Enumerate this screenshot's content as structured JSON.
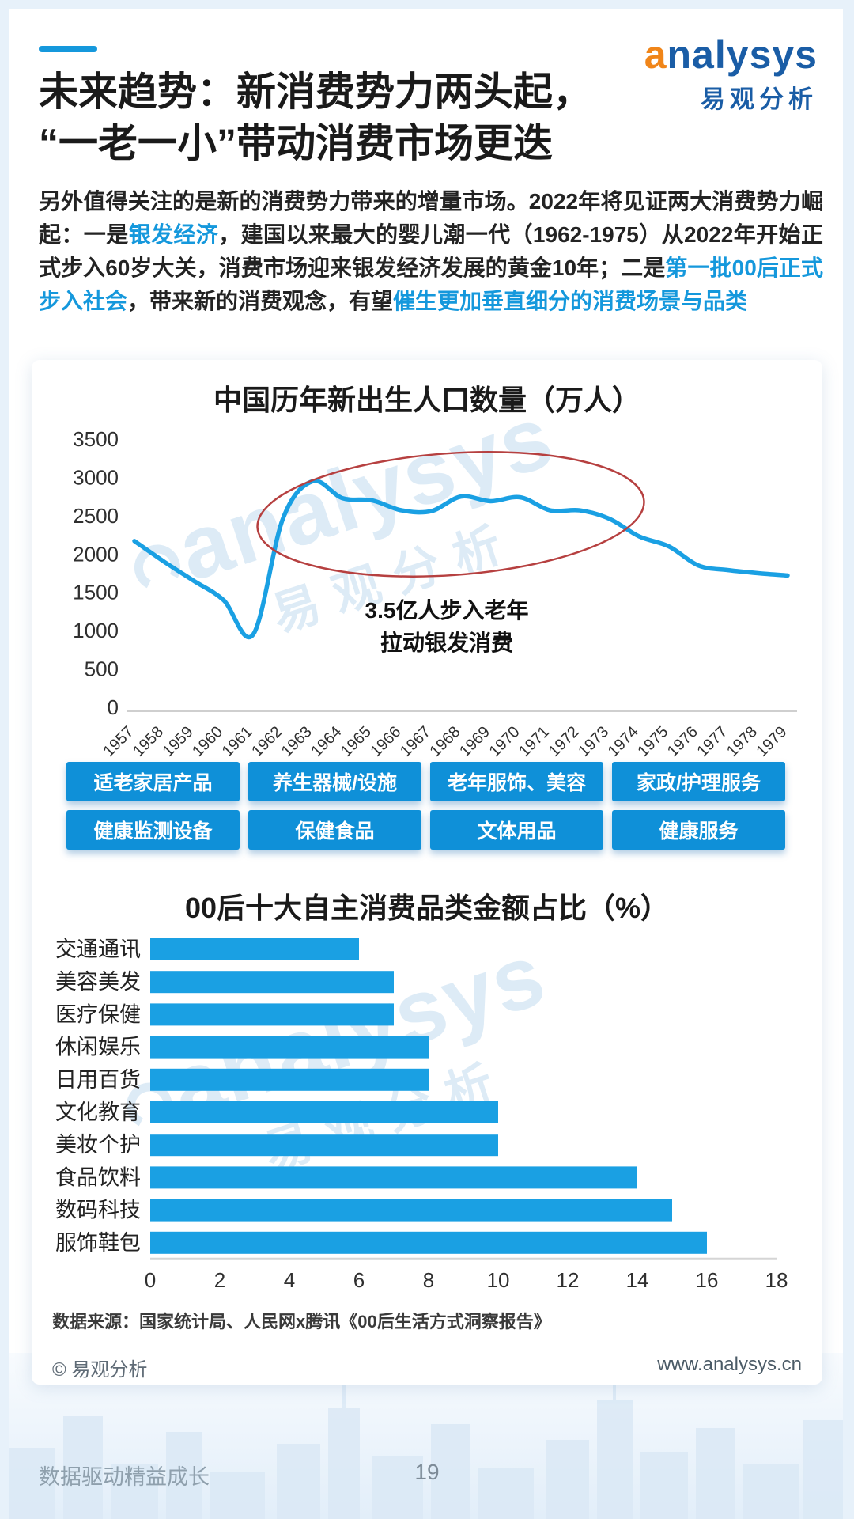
{
  "meta": {
    "accent": "#1598dc"
  },
  "header": {
    "logo_en": "analysys",
    "logo_cn": "易观分析"
  },
  "title": {
    "line1": "未来趋势：新消费势力两头起，",
    "line2": "“一老一小”带动消费市场更迭"
  },
  "paragraph": {
    "segments": [
      {
        "text": "另外值得关注的是新的消费势力带来的增量市场。2022年将见证两大消费势力崛起：一是",
        "highlight": false
      },
      {
        "text": "银发经济",
        "highlight": true
      },
      {
        "text": "，建国以来最大的婴儿潮一代（1962-1975）从2022年开始正式步入60岁大关，消费市场迎来银发经济发展的黄金10年；二是",
        "highlight": false
      },
      {
        "text": "第一批00后正式步入社会",
        "highlight": true
      },
      {
        "text": "，带来新的消费观念，有望",
        "highlight": false
      },
      {
        "text": "催生更加垂直细分的消费场景与品类",
        "highlight": true
      }
    ]
  },
  "chart_data": [
    {
      "type": "line",
      "title": "中国历年新出生人口数量（万人）",
      "x": [
        1957,
        1958,
        1959,
        1960,
        1961,
        1962,
        1963,
        1964,
        1965,
        1966,
        1967,
        1968,
        1969,
        1970,
        1971,
        1972,
        1973,
        1974,
        1975,
        1976,
        1977,
        1978,
        1979
      ],
      "values": [
        2170,
        1900,
        1650,
        1400,
        950,
        2460,
        2950,
        2730,
        2700,
        2570,
        2560,
        2750,
        2690,
        2740,
        2570,
        2570,
        2460,
        2230,
        2100,
        1850,
        1790,
        1750,
        1720
      ],
      "ylim": [
        0,
        3500
      ],
      "ytick_step": 500,
      "grid": false,
      "line_color": "#1aa0e3",
      "ellipse_color": "#b64040",
      "annotation": [
        "3.5亿人步入老年",
        "拉动银发消费"
      ]
    },
    {
      "type": "bar",
      "title": "00后十大自主消费品类金额占比（%）",
      "categories": [
        "交通通讯",
        "美容美发",
        "医疗保健",
        "休闲娱乐",
        "日用百货",
        "文化教育",
        "美妆个护",
        "食品饮料",
        "数码科技",
        "服饰鞋包"
      ],
      "values": [
        6,
        7,
        7,
        8,
        8,
        10,
        10,
        14,
        15,
        16
      ],
      "xlim": [
        0,
        18
      ],
      "xtick_step": 2,
      "grid": false,
      "bar_color": "#1aa0e3"
    }
  ],
  "tags": {
    "rows": [
      [
        "适老家居产品",
        "养生器械/设施",
        "老年服饰、美容",
        "家政/护理服务"
      ],
      [
        "健康监测设备",
        "保健食品",
        "文体用品",
        "健康服务"
      ]
    ]
  },
  "footer_card": {
    "source": "数据来源：国家统计局、人民网x腾讯《00后生活方式洞察报告》",
    "copyright": "© 易观分析",
    "website": "www.analysys.cn"
  },
  "page_footer": {
    "slogan": "数据驱动精益成长",
    "page_number": "19"
  },
  "watermark": {
    "text": "analysys",
    "text_cn": "易观分析"
  }
}
